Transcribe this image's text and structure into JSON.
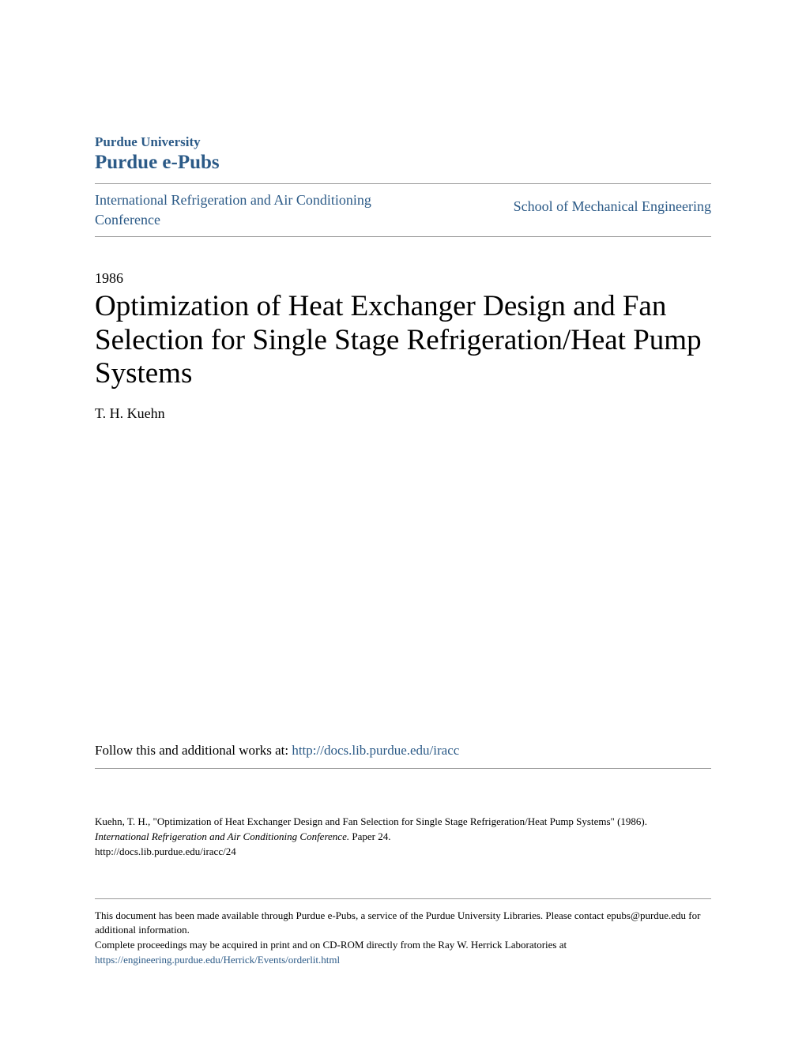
{
  "header": {
    "university": "Purdue University",
    "repository": "Purdue e-Pubs",
    "nav_left": "International Refrigeration and Air Conditioning Conference",
    "nav_right": "School of Mechanical Engineering"
  },
  "paper": {
    "year": "1986",
    "title": "Optimization of Heat Exchanger Design and Fan Selection for Single Stage Refrigeration/Heat Pump Systems",
    "author": "T. H. Kuehn"
  },
  "follow": {
    "prefix": "Follow this and additional works at: ",
    "url": "http://docs.lib.purdue.edu/iracc"
  },
  "citation": {
    "text_1": "Kuehn, T. H., \"Optimization of Heat Exchanger Design and Fan Selection for Single Stage Refrigeration/Heat Pump Systems\" (1986).",
    "journal": "International Refrigeration and Air Conditioning Conference.",
    "paper": " Paper 24.",
    "url": "http://docs.lib.purdue.edu/iracc/24"
  },
  "footer": {
    "line1": "This document has been made available through Purdue e-Pubs, a service of the Purdue University Libraries. Please contact epubs@purdue.edu for additional information.",
    "line2_prefix": "Complete proceedings may be acquired in print and on CD-ROM directly from the Ray W. Herrick Laboratories at ",
    "line2_link": "https://engineering.purdue.edu/Herrick/Events/orderlit.html"
  },
  "colors": {
    "link_color": "#2b5a87",
    "text_color": "#000000",
    "border_color": "#999999",
    "background": "#ffffff"
  }
}
